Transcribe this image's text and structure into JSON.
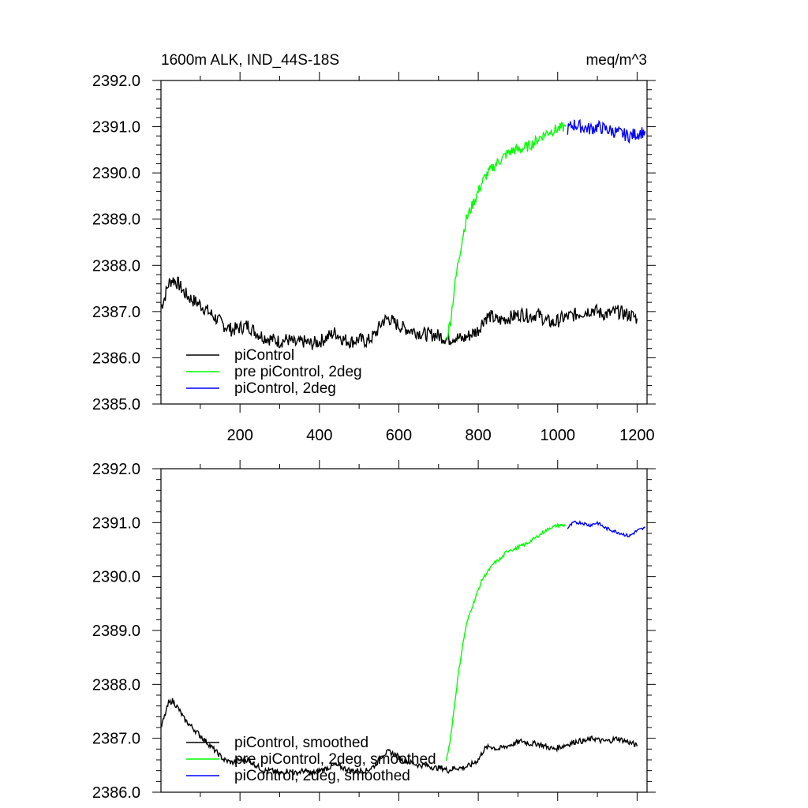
{
  "title_left": "1600m ALK, IND_44S-18S",
  "title_right": "meq/m^3",
  "chart_data": [
    {
      "type": "line",
      "title": "1600m ALK, IND_44S-18S",
      "units": "meq/m^3",
      "xlim": [
        1,
        1225
      ],
      "ylim": [
        2385.0,
        2392.0
      ],
      "x_ticks": [
        200,
        400,
        600,
        800,
        1000,
        1200
      ],
      "x_tick_labels": [
        "200",
        "400",
        "600",
        "800",
        "1000",
        "1200"
      ],
      "y_ticks": [
        2385.0,
        2386.0,
        2387.0,
        2388.0,
        2389.0,
        2390.0,
        2391.0,
        2392.0
      ],
      "y_tick_labels": [
        "2385.0",
        "2386.0",
        "2387.0",
        "2388.0",
        "2389.0",
        "2390.0",
        "2391.0",
        "2392.0"
      ],
      "legend": "bottom-left",
      "noise": [
        0.15,
        0.12,
        0.14
      ],
      "series": [
        {
          "name": "piControl",
          "color": "#000000",
          "x": [
            1,
            10,
            20,
            30,
            45,
            60,
            80,
            100,
            120,
            140,
            160,
            180,
            200,
            220,
            240,
            260,
            280,
            300,
            320,
            340,
            360,
            380,
            400,
            420,
            440,
            460,
            480,
            500,
            520,
            540,
            560,
            575,
            590,
            610,
            630,
            650,
            670,
            690,
            710,
            725,
            740,
            760,
            780,
            800,
            815,
            830,
            850,
            870,
            890,
            910,
            930,
            950,
            970,
            990,
            1010,
            1030,
            1050,
            1070,
            1090,
            1110,
            1130,
            1150,
            1170,
            1190,
            1200
          ],
          "y": [
            2387.1,
            2387.3,
            2387.6,
            2387.7,
            2387.6,
            2387.4,
            2387.25,
            2387.15,
            2387.0,
            2386.85,
            2386.7,
            2386.6,
            2386.65,
            2386.7,
            2386.55,
            2386.45,
            2386.4,
            2386.35,
            2386.4,
            2386.3,
            2386.35,
            2386.3,
            2386.35,
            2386.45,
            2386.55,
            2386.4,
            2386.35,
            2386.4,
            2386.35,
            2386.5,
            2386.8,
            2386.85,
            2386.75,
            2386.65,
            2386.6,
            2386.55,
            2386.5,
            2386.5,
            2386.45,
            2386.4,
            2386.45,
            2386.4,
            2386.5,
            2386.6,
            2386.85,
            2386.9,
            2386.8,
            2386.85,
            2386.9,
            2386.95,
            2386.9,
            2386.95,
            2386.8,
            2386.75,
            2386.85,
            2386.9,
            2386.95,
            2387.0,
            2387.05,
            2386.95,
            2386.95,
            2387.0,
            2386.95,
            2386.9,
            2386.85
          ]
        },
        {
          "name": "pre piControl, 2deg",
          "color": "#00ff00",
          "x": [
            720,
            730,
            740,
            750,
            760,
            770,
            780,
            790,
            800,
            810,
            820,
            830,
            840,
            850,
            860,
            870,
            880,
            890,
            900,
            920,
            940,
            960,
            980,
            1000,
            1020
          ],
          "y": [
            2386.4,
            2386.8,
            2387.5,
            2388.1,
            2388.6,
            2389.0,
            2389.2,
            2389.4,
            2389.6,
            2389.8,
            2389.95,
            2390.05,
            2390.15,
            2390.25,
            2390.3,
            2390.4,
            2390.45,
            2390.5,
            2390.5,
            2390.55,
            2390.65,
            2390.8,
            2390.9,
            2390.95,
            2391.0
          ]
        },
        {
          "name": "piControl, 2deg",
          "color": "#0000ff",
          "x": [
            1025,
            1040,
            1060,
            1080,
            1100,
            1120,
            1140,
            1160,
            1180,
            1200,
            1220
          ],
          "y": [
            2390.95,
            2391.05,
            2391.0,
            2390.95,
            2391.0,
            2390.95,
            2390.9,
            2390.85,
            2390.8,
            2390.85,
            2390.9
          ]
        }
      ]
    },
    {
      "type": "line",
      "xlim": [
        1,
        1225
      ],
      "ylim": [
        2386.0,
        2392.0
      ],
      "x_ticks": [
        200,
        400,
        600,
        800,
        1000,
        1200
      ],
      "x_tick_labels": [],
      "y_ticks": [
        2386.0,
        2387.0,
        2388.0,
        2389.0,
        2390.0,
        2391.0,
        2392.0
      ],
      "y_tick_labels": [
        "2386.0",
        "2387.0",
        "2388.0",
        "2389.0",
        "2390.0",
        "2391.0",
        "2392.0"
      ],
      "legend": "bottom-left",
      "noise": [
        0.05,
        0.03,
        0.03
      ],
      "series": [
        {
          "name": "piControl, smoothed",
          "color": "#000000",
          "x": [
            1,
            10,
            20,
            30,
            45,
            60,
            80,
            100,
            120,
            140,
            160,
            180,
            200,
            220,
            240,
            260,
            280,
            300,
            320,
            340,
            360,
            380,
            400,
            420,
            440,
            460,
            480,
            500,
            520,
            540,
            560,
            575,
            590,
            610,
            630,
            650,
            670,
            690,
            710,
            725,
            740,
            760,
            780,
            800,
            815,
            830,
            850,
            870,
            890,
            910,
            930,
            950,
            970,
            990,
            1010,
            1030,
            1050,
            1070,
            1090,
            1110,
            1130,
            1150,
            1170,
            1190,
            1200
          ],
          "y": [
            2387.2,
            2387.4,
            2387.65,
            2387.7,
            2387.55,
            2387.35,
            2387.2,
            2387.05,
            2386.9,
            2386.75,
            2386.6,
            2386.55,
            2386.6,
            2386.6,
            2386.5,
            2386.4,
            2386.4,
            2386.35,
            2386.4,
            2386.35,
            2386.4,
            2386.35,
            2386.4,
            2386.45,
            2386.5,
            2386.45,
            2386.4,
            2386.4,
            2386.4,
            2386.5,
            2386.7,
            2386.75,
            2386.7,
            2386.6,
            2386.55,
            2386.5,
            2386.5,
            2386.45,
            2386.45,
            2386.4,
            2386.45,
            2386.45,
            2386.5,
            2386.6,
            2386.8,
            2386.85,
            2386.8,
            2386.85,
            2386.9,
            2386.95,
            2386.9,
            2386.9,
            2386.85,
            2386.8,
            2386.85,
            2386.9,
            2386.95,
            2386.95,
            2387.0,
            2386.95,
            2386.95,
            2387.0,
            2386.95,
            2386.9,
            2386.85
          ]
        },
        {
          "name": "pre piControl, 2deg, smoothed",
          "color": "#00ff00",
          "x": [
            720,
            730,
            740,
            750,
            760,
            770,
            780,
            790,
            800,
            810,
            820,
            830,
            840,
            850,
            860,
            870,
            880,
            890,
            900,
            920,
            940,
            960,
            980,
            1000,
            1020
          ],
          "y": [
            2386.6,
            2387.0,
            2387.6,
            2388.2,
            2388.7,
            2389.1,
            2389.35,
            2389.55,
            2389.75,
            2389.95,
            2390.05,
            2390.15,
            2390.25,
            2390.3,
            2390.35,
            2390.45,
            2390.5,
            2390.5,
            2390.55,
            2390.6,
            2390.7,
            2390.8,
            2390.9,
            2390.95,
            2390.95
          ]
        },
        {
          "name": "piControl, 2deg, smoothed",
          "color": "#0000ff",
          "x": [
            1025,
            1040,
            1060,
            1080,
            1100,
            1120,
            1140,
            1160,
            1180,
            1200,
            1220
          ],
          "y": [
            2390.9,
            2391.0,
            2391.0,
            2390.95,
            2391.0,
            2390.9,
            2390.85,
            2390.8,
            2390.75,
            2390.85,
            2390.9
          ]
        }
      ]
    }
  ]
}
